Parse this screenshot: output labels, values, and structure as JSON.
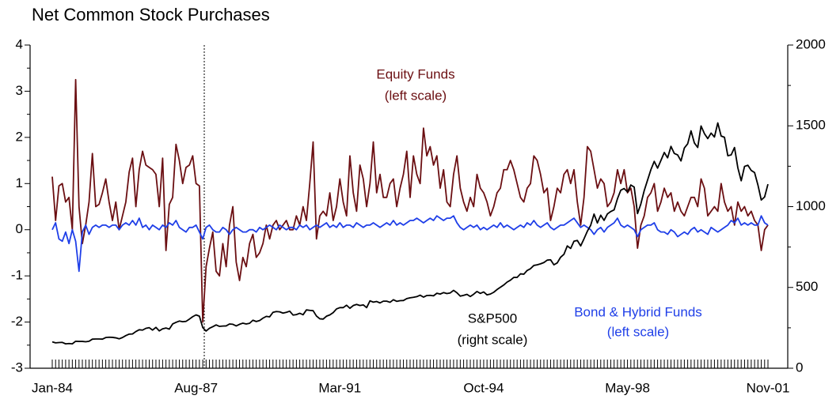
{
  "chart_data": {
    "type": "line",
    "title": "Net Common Stock Purchases",
    "categories": [
      "Jan-84",
      null,
      null,
      null,
      null,
      null,
      null,
      null,
      null,
      null,
      null,
      null,
      null,
      null,
      null,
      null,
      null,
      null,
      null,
      null,
      null,
      null,
      null,
      null,
      null,
      null,
      null,
      null,
      null,
      null,
      null,
      null,
      null,
      null,
      null,
      null,
      null,
      null,
      null,
      null,
      null,
      null,
      null,
      "Aug-87",
      null,
      null,
      null,
      null,
      null,
      null,
      null,
      null,
      null,
      null,
      null,
      null,
      null,
      null,
      null,
      null,
      null,
      null,
      null,
      null,
      null,
      null,
      null,
      null,
      null,
      null,
      null,
      null,
      null,
      null,
      null,
      null,
      null,
      null,
      null,
      null,
      null,
      null,
      null,
      null,
      null,
      null,
      "Mar-91",
      null,
      null,
      null,
      null,
      null,
      null,
      null,
      null,
      null,
      null,
      null,
      null,
      null,
      null,
      null,
      null,
      null,
      null,
      null,
      null,
      null,
      null,
      null,
      null,
      null,
      null,
      null,
      null,
      null,
      null,
      null,
      null,
      null,
      null,
      null,
      null,
      null,
      null,
      null,
      null,
      null,
      null,
      "Oct-94",
      null,
      null,
      null,
      null,
      null,
      null,
      null,
      null,
      null,
      null,
      null,
      null,
      null,
      null,
      null,
      null,
      null,
      null,
      null,
      null,
      null,
      null,
      null,
      null,
      null,
      null,
      null,
      null,
      null,
      null,
      null,
      null,
      null,
      null,
      null,
      null,
      null,
      null,
      null,
      null,
      null,
      null,
      "May-98",
      null,
      null,
      null,
      null,
      null,
      null,
      null,
      null,
      null,
      null,
      null,
      null,
      null,
      null,
      null,
      null,
      null,
      null,
      null,
      null,
      null,
      null,
      null,
      null,
      null,
      null,
      null,
      null,
      null,
      null,
      null,
      null,
      null,
      null,
      null,
      null,
      null,
      null,
      null,
      null,
      null,
      "Nov-01"
    ],
    "series": [
      {
        "name": "Equity Funds",
        "color": "#6b0f12",
        "axis": "y",
        "values": [
          1.15,
          0.2,
          0.95,
          1.0,
          0.6,
          0.7,
          0.0,
          3.25,
          0.5,
          -0.3,
          0.1,
          0.6,
          1.65,
          0.5,
          0.55,
          0.8,
          1.1,
          0.6,
          0.2,
          0.6,
          0.0,
          0.3,
          0.6,
          1.25,
          1.55,
          0.5,
          1.3,
          1.7,
          1.4,
          1.35,
          1.3,
          1.2,
          0.5,
          1.55,
          -0.45,
          0.55,
          0.7,
          1.85,
          1.5,
          1.0,
          1.35,
          1.4,
          1.6,
          1.0,
          0.95,
          -2.0,
          -0.8,
          -0.4,
          -0.05,
          -0.9,
          -1.0,
          -0.3,
          -0.8,
          0.1,
          0.5,
          -0.7,
          -1.1,
          -0.6,
          -0.8,
          -0.3,
          -0.1,
          -0.6,
          -0.5,
          -0.3,
          0.1,
          -0.2,
          0.1,
          0.2,
          0.0,
          0.1,
          0.2,
          0.0,
          0.0,
          0.3,
          0.1,
          0.5,
          0.2,
          1.0,
          1.9,
          -0.2,
          0.3,
          0.4,
          0.3,
          0.8,
          0.2,
          0.5,
          1.1,
          0.6,
          0.3,
          1.6,
          0.8,
          0.4,
          1.4,
          1.1,
          0.5,
          1.0,
          1.9,
          0.8,
          1.2,
          0.7,
          0.7,
          1.0,
          1.1,
          0.5,
          0.9,
          1.2,
          1.7,
          0.7,
          1.6,
          1.2,
          1.0,
          2.2,
          1.6,
          1.8,
          1.4,
          1.6,
          0.9,
          1.3,
          0.6,
          0.5,
          1.2,
          1.6,
          0.9,
          0.6,
          0.4,
          0.7,
          0.5,
          1.2,
          0.9,
          0.8,
          0.6,
          0.3,
          0.5,
          0.8,
          0.9,
          1.3,
          1.3,
          1.5,
          1.3,
          1.0,
          0.7,
          0.6,
          0.9,
          1.0,
          1.6,
          1.5,
          1.2,
          0.8,
          0.9,
          0.2,
          0.5,
          0.9,
          0.8,
          1.2,
          1.3,
          1.0,
          1.3,
          0.6,
          0.1,
          0.7,
          1.8,
          1.7,
          1.3,
          0.9,
          1.1,
          1.0,
          0.5,
          0.6,
          0.8,
          1.3,
          1.0,
          1.3,
          0.8,
          0.9,
          0.5,
          -0.4,
          0.1,
          0.3,
          0.7,
          0.8,
          1.0,
          0.4,
          0.6,
          0.9,
          0.7,
          0.8,
          0.4,
          0.6,
          0.4,
          0.3,
          0.5,
          0.7,
          0.7,
          0.5,
          1.1,
          0.9,
          0.3,
          0.4,
          0.5,
          0.4,
          1.0,
          0.6,
          0.4,
          0.5,
          0.1,
          0.6,
          0.4,
          0.5,
          0.3,
          0.4,
          0.2,
          0.1,
          -0.45,
          0.0,
          0.1
        ]
      },
      {
        "name": "Bond & Hybrid Funds",
        "color": "#1f3fe8",
        "axis": "y",
        "values": [
          0.0,
          0.15,
          -0.2,
          -0.25,
          -0.05,
          -0.3,
          0.0,
          -0.25,
          -0.9,
          -0.05,
          0.1,
          -0.1,
          0.05,
          0.1,
          0.05,
          0.1,
          0.1,
          0.05,
          0.1,
          0.1,
          0.0,
          0.1,
          0.15,
          0.1,
          0.2,
          0.1,
          0.25,
          0.05,
          0.1,
          0.0,
          0.1,
          0.05,
          0.0,
          0.1,
          0.05,
          0.15,
          0.1,
          0.2,
          0.05,
          0.0,
          -0.05,
          0.05,
          0.05,
          0.1,
          -0.05,
          -0.2,
          0.05,
          0.1,
          0.0,
          -0.05,
          -0.05,
          0.05,
          0.0,
          -0.1,
          0.0,
          0.05,
          0.0,
          -0.05,
          -0.05,
          0.0,
          0.0,
          -0.05,
          0.05,
          0.0,
          0.05,
          0.1,
          0.05,
          0.0,
          0.1,
          0.05,
          0.0,
          0.05,
          0.05,
          0.0,
          0.1,
          0.05,
          0.1,
          0.0,
          0.05,
          0.1,
          0.05,
          0.1,
          0.15,
          0.05,
          0.1,
          0.05,
          0.15,
          0.05,
          0.1,
          0.1,
          0.05,
          0.15,
          0.1,
          0.05,
          0.1,
          0.1,
          0.15,
          0.1,
          0.05,
          0.1,
          0.15,
          0.1,
          0.2,
          0.1,
          0.15,
          0.1,
          0.15,
          0.2,
          0.2,
          0.25,
          0.2,
          0.15,
          0.2,
          0.25,
          0.2,
          0.3,
          0.25,
          0.2,
          0.25,
          0.25,
          0.3,
          0.15,
          0.05,
          0.0,
          0.05,
          0.1,
          0.05,
          0.1,
          0.0,
          0.05,
          0.0,
          0.05,
          0.1,
          0.05,
          0.15,
          0.05,
          0.1,
          0.05,
          0.0,
          0.05,
          0.1,
          0.05,
          0.15,
          0.1,
          0.2,
          0.1,
          0.05,
          0.1,
          0.15,
          0.05,
          0.0,
          0.05,
          0.1,
          0.1,
          0.15,
          0.2,
          0.25,
          0.15,
          0.05,
          0.1,
          0.05,
          0.0,
          -0.1,
          0.0,
          0.05,
          -0.05,
          0.05,
          0.1,
          0.15,
          0.25,
          0.1,
          0.05,
          0.1,
          0.05,
          0.0,
          -0.15,
          0.0,
          0.05,
          0.1,
          0.1,
          0.15,
          0.0,
          -0.05,
          -0.05,
          -0.1,
          0.0,
          -0.05,
          -0.15,
          -0.1,
          -0.05,
          -0.1,
          0.0,
          0.05,
          -0.05,
          0.0,
          -0.05,
          -0.1,
          0.05,
          0.0,
          -0.05,
          0.0,
          0.05,
          0.1,
          0.2,
          0.15,
          0.25,
          0.1,
          0.15,
          0.1,
          0.15,
          0.1,
          0.1,
          0.3,
          0.15,
          0.1
        ]
      },
      {
        "name": "S&P500",
        "color": "#000000",
        "axis": "y2",
        "values": [
          163,
          157,
          159,
          160,
          151,
          153,
          151,
          167,
          166,
          166,
          164,
          167,
          180,
          181,
          181,
          180,
          190,
          192,
          191,
          188,
          182,
          190,
          202,
          211,
          212,
          227,
          238,
          236,
          247,
          251,
          236,
          253,
          231,
          244,
          249,
          242,
          274,
          284,
          292,
          288,
          290,
          304,
          319,
          330,
          322,
          252,
          230,
          247,
          257,
          268,
          259,
          261,
          262,
          274,
          272,
          262,
          272,
          279,
          274,
          278,
          297,
          289,
          295,
          310,
          321,
          318,
          346,
          351,
          349,
          341,
          346,
          353,
          329,
          332,
          340,
          331,
          361,
          358,
          356,
          323,
          306,
          304,
          322,
          330,
          344,
          367,
          375,
          375,
          390,
          371,
          388,
          395,
          388,
          392,
          375,
          417,
          409,
          413,
          404,
          415,
          415,
          408,
          424,
          414,
          418,
          419,
          431,
          436,
          439,
          443,
          452,
          440,
          450,
          451,
          448,
          464,
          459,
          468,
          462,
          466,
          482,
          467,
          446,
          451,
          457,
          444,
          458,
          475,
          463,
          472,
          454,
          459,
          470,
          487,
          501,
          515,
          533,
          545,
          562,
          562,
          584,
          582,
          605,
          616,
          636,
          640,
          646,
          654,
          669,
          671,
          640,
          652,
          687,
          705,
          757,
          741,
          786,
          791,
          757,
          801,
          848,
          885,
          954,
          899,
          947,
          915,
          955,
          970,
          980,
          1049,
          1102,
          1112,
          1091,
          1134,
          1121,
          957,
          1017,
          1099,
          1164,
          1229,
          1280,
          1238,
          1286,
          1335,
          1302,
          1373,
          1329,
          1320,
          1283,
          1363,
          1389,
          1469,
          1394,
          1366,
          1499,
          1452,
          1421,
          1455,
          1431,
          1518,
          1437,
          1429,
          1315,
          1320,
          1366,
          1240,
          1160,
          1249,
          1256,
          1224,
          1211,
          1134,
          1041,
          1060,
          1139
        ]
      }
    ],
    "annotations": [
      "Equity Funds",
      "(left scale)",
      "S&P500",
      "(right scale)",
      "Bond & Hybrid Funds",
      "(left scale)"
    ],
    "ylim": [
      -3,
      4
    ],
    "yticks": [
      -3,
      -2,
      -1,
      0,
      1,
      2,
      3,
      4
    ],
    "y2lim": [
      0,
      2000
    ],
    "y2ticks": [
      0,
      500,
      1000,
      1500,
      2000
    ]
  }
}
